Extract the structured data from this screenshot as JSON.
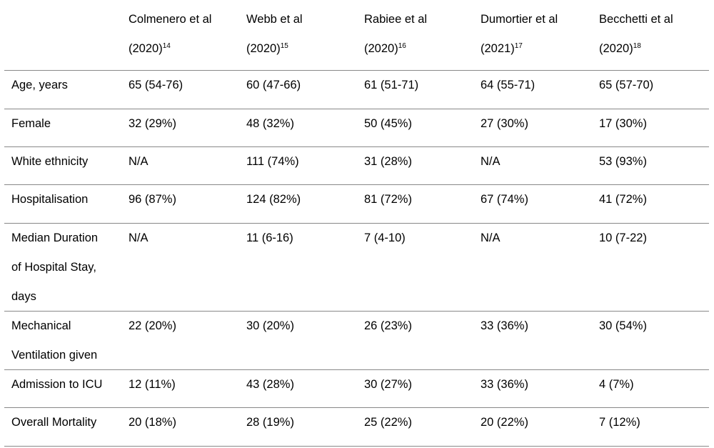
{
  "header": {
    "studies": [
      {
        "line1": "Colmenero et al",
        "line2": "(2020)",
        "ref": "14"
      },
      {
        "line1": "Webb et al",
        "line2": "(2020)",
        "ref": "15"
      },
      {
        "line1": "Rabiee et al",
        "line2": "(2020)",
        "ref": "16"
      },
      {
        "line1": "Dumortier et al",
        "line2": "(2021)",
        "ref": "17"
      },
      {
        "line1": "Becchetti et al",
        "line2": "(2020)",
        "ref": "18"
      }
    ]
  },
  "rows": [
    {
      "label": [
        "Age, years"
      ],
      "values": [
        "65 (54-76)",
        "60 (47-66)",
        "61 (51-71)",
        "64 (55-71)",
        "65 (57-70)"
      ]
    },
    {
      "label": [
        "Female"
      ],
      "values": [
        "32 (29%)",
        "48 (32%)",
        "50 (45%)",
        "27 (30%)",
        "17 (30%)"
      ]
    },
    {
      "label": [
        "White ethnicity"
      ],
      "values": [
        "N/A",
        "111 (74%)",
        "31 (28%)",
        "N/A",
        "53 (93%)"
      ]
    },
    {
      "label": [
        "Hospitalisation"
      ],
      "values": [
        "96 (87%)",
        "124 (82%)",
        "81 (72%)",
        "67 (74%)",
        "41 (72%)"
      ]
    },
    {
      "label": [
        "Median Duration",
        "of Hospital Stay,",
        "days"
      ],
      "values": [
        "N/A",
        "11 (6-16)",
        "7 (4-10)",
        "N/A",
        "10 (7-22)"
      ]
    },
    {
      "label": [
        "Mechanical",
        "Ventilation given"
      ],
      "values": [
        "22 (20%)",
        "30 (20%)",
        "26 (23%)",
        "33 (36%)",
        "30 (54%)"
      ]
    },
    {
      "label": [
        "Admission to ICU"
      ],
      "values": [
        "12 (11%)",
        "43 (28%)",
        "30 (27%)",
        "33 (36%)",
        "4 (7%)"
      ]
    },
    {
      "label": [
        "Overall Mortality"
      ],
      "values": [
        "20 (18%)",
        "28 (19%)",
        "25 (22%)",
        "20 (22%)",
        "7 (12%)"
      ]
    }
  ]
}
